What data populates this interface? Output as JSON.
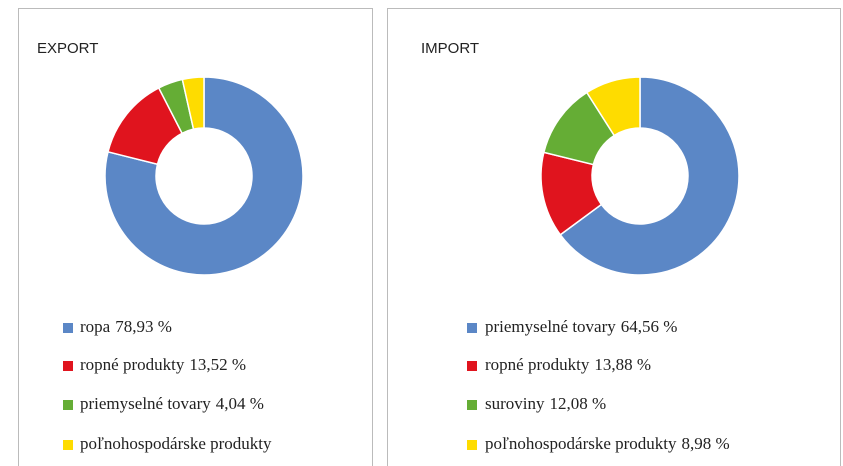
{
  "chart_data": [
    {
      "type": "donut",
      "title": "EXPORT",
      "categories": [
        "ropa",
        "ropné produkty",
        "priemyselné tovary",
        "poľnohospodárske produkty"
      ],
      "values": [
        78.93,
        13.52,
        4.04,
        3.51
      ],
      "value_labels": [
        "78,93 %",
        "13,52 %",
        "4,04 %",
        null
      ],
      "colors": [
        "#5b87c6",
        "#e0141e",
        "#65ad35",
        "#fedc00"
      ]
    },
    {
      "type": "donut",
      "title": "IMPORT",
      "categories": [
        "priemyselné tovary",
        "ropné produkty",
        "suroviny",
        "poľnohospodárske produkty"
      ],
      "values": [
        64.56,
        13.88,
        12.08,
        8.98
      ],
      "value_labels": [
        "64,56 %",
        "13,88 %",
        "12,08 %",
        "8,98 %"
      ],
      "colors": [
        "#5b87c6",
        "#e0141e",
        "#65ad35",
        "#fedc00"
      ]
    }
  ]
}
